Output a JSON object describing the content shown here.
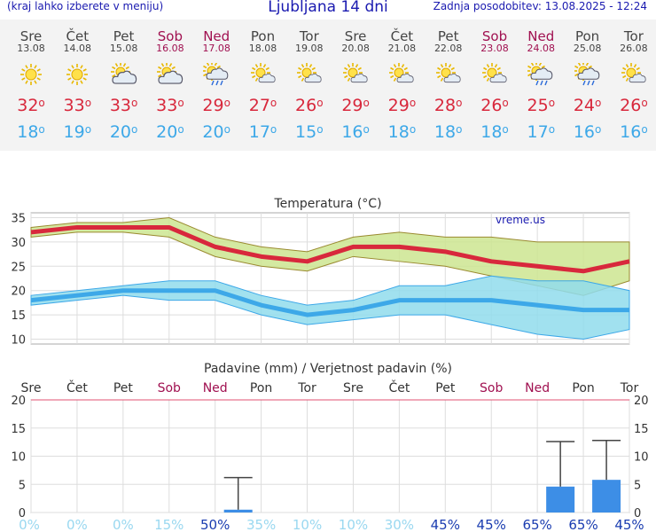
{
  "header": {
    "menu_hint": "(kraj lahko izberete v meniju)",
    "title": "Ljubljana 14 dni",
    "updated": "Zadnja posodobitev: 13.08.2025 - 12:24"
  },
  "days": [
    {
      "name": "Sre",
      "date": "13.08",
      "weekend": false,
      "icon": "sun-icon",
      "tmax": "32",
      "tmin": "18"
    },
    {
      "name": "Čet",
      "date": "14.08",
      "weekend": false,
      "icon": "sun-icon",
      "tmax": "33",
      "tmin": "19"
    },
    {
      "name": "Pet",
      "date": "15.08",
      "weekend": false,
      "icon": "sun-cloud-icon",
      "tmax": "33",
      "tmin": "20"
    },
    {
      "name": "Sob",
      "date": "16.08",
      "weekend": true,
      "icon": "sun-cloud-icon",
      "tmax": "33",
      "tmin": "20"
    },
    {
      "name": "Ned",
      "date": "17.08",
      "weekend": true,
      "icon": "sun-cloud-rain-icon",
      "tmax": "29",
      "tmin": "20"
    },
    {
      "name": "Pon",
      "date": "18.08",
      "weekend": false,
      "icon": "sun-small-cloud-icon",
      "tmax": "27",
      "tmin": "17"
    },
    {
      "name": "Tor",
      "date": "19.08",
      "weekend": false,
      "icon": "sun-small-cloud-icon",
      "tmax": "26",
      "tmin": "15"
    },
    {
      "name": "Sre",
      "date": "20.08",
      "weekend": false,
      "icon": "sun-small-cloud-icon",
      "tmax": "29",
      "tmin": "16"
    },
    {
      "name": "Čet",
      "date": "21.08",
      "weekend": false,
      "icon": "sun-small-cloud-icon",
      "tmax": "29",
      "tmin": "18"
    },
    {
      "name": "Pet",
      "date": "22.08",
      "weekend": false,
      "icon": "sun-small-cloud-icon",
      "tmax": "28",
      "tmin": "18"
    },
    {
      "name": "Sob",
      "date": "23.08",
      "weekend": true,
      "icon": "sun-small-cloud-icon",
      "tmax": "26",
      "tmin": "18"
    },
    {
      "name": "Ned",
      "date": "24.08",
      "weekend": true,
      "icon": "sun-cloud-rain-icon",
      "tmax": "25",
      "tmin": "17"
    },
    {
      "name": "Pon",
      "date": "25.08",
      "weekend": false,
      "icon": "sun-cloud-rain-icon",
      "tmax": "24",
      "tmin": "16"
    },
    {
      "name": "Tor",
      "date": "26.08",
      "weekend": false,
      "icon": "sun-small-cloud-icon",
      "tmax": "26",
      "tmin": "16"
    }
  ],
  "colors": {
    "tmax": "#d8283c",
    "tmin": "#3da8e8",
    "weekend": "#a01050",
    "max_band": "#cde590",
    "min_band": "#90dcec",
    "rain_bar": "#3d8ee6",
    "prob_high": "#1a3cb0",
    "prob_low": "#9ad8f0"
  },
  "chart_data": [
    {
      "type": "line",
      "title": "Temperatura",
      "unit": "(°C)",
      "watermark": "vreme.us",
      "ylim": [
        9,
        36
      ],
      "yticks": [
        10,
        15,
        20,
        25,
        30,
        35
      ],
      "grid": true,
      "x": [
        "13.08",
        "14.08",
        "15.08",
        "16.08",
        "17.08",
        "18.08",
        "19.08",
        "20.08",
        "21.08",
        "22.08",
        "23.08",
        "24.08",
        "25.08",
        "26.08"
      ],
      "series": [
        {
          "name": "max",
          "values": [
            32,
            33,
            33,
            33,
            29,
            27,
            26,
            29,
            29,
            28,
            26,
            25,
            24,
            26
          ]
        },
        {
          "name": "min",
          "values": [
            18,
            19,
            20,
            20,
            20,
            17,
            15,
            16,
            18,
            18,
            18,
            17,
            16,
            16
          ]
        },
        {
          "name": "max-upper",
          "values": [
            33,
            34,
            34,
            35,
            31,
            29,
            28,
            31,
            32,
            31,
            31,
            30,
            30,
            30
          ]
        },
        {
          "name": "max-lower",
          "values": [
            31,
            32,
            32,
            31,
            27,
            25,
            24,
            27,
            26,
            25,
            23,
            21,
            19,
            22
          ]
        },
        {
          "name": "min-upper",
          "values": [
            19,
            20,
            21,
            22,
            22,
            19,
            17,
            18,
            21,
            21,
            23,
            22,
            22,
            20
          ]
        },
        {
          "name": "min-lower",
          "values": [
            17,
            18,
            19,
            18,
            18,
            15,
            13,
            14,
            15,
            15,
            13,
            11,
            10,
            12
          ]
        }
      ]
    },
    {
      "type": "bar",
      "title": "Padavine (mm) / Verjetnost padavin (%)",
      "categories": [
        "Sre",
        "Čet",
        "Pet",
        "Sob",
        "Ned",
        "Pon",
        "Tor",
        "Sre",
        "Čet",
        "Pet",
        "Sob",
        "Ned",
        "Pon",
        "Tor"
      ],
      "weekend": [
        false,
        false,
        false,
        true,
        true,
        false,
        false,
        false,
        false,
        false,
        true,
        true,
        false,
        false
      ],
      "ylim": [
        0,
        20
      ],
      "yticks": [
        0,
        5,
        10,
        15,
        20
      ],
      "grid": true,
      "series": [
        {
          "name": "precip",
          "values": [
            0,
            0,
            0,
            0,
            0.5,
            0,
            0,
            0,
            0,
            0,
            0,
            4.6,
            5.8,
            0
          ]
        },
        {
          "name": "precip-max",
          "values": [
            0,
            0,
            0,
            0,
            6.2,
            0,
            0,
            0,
            0,
            0,
            0,
            12.6,
            12.8,
            0
          ]
        }
      ],
      "probability": [
        "0%",
        "0%",
        "0%",
        "15%",
        "50%",
        "35%",
        "10%",
        "10%",
        "30%",
        "45%",
        "45%",
        "65%",
        "65%",
        "45%"
      ]
    }
  ]
}
